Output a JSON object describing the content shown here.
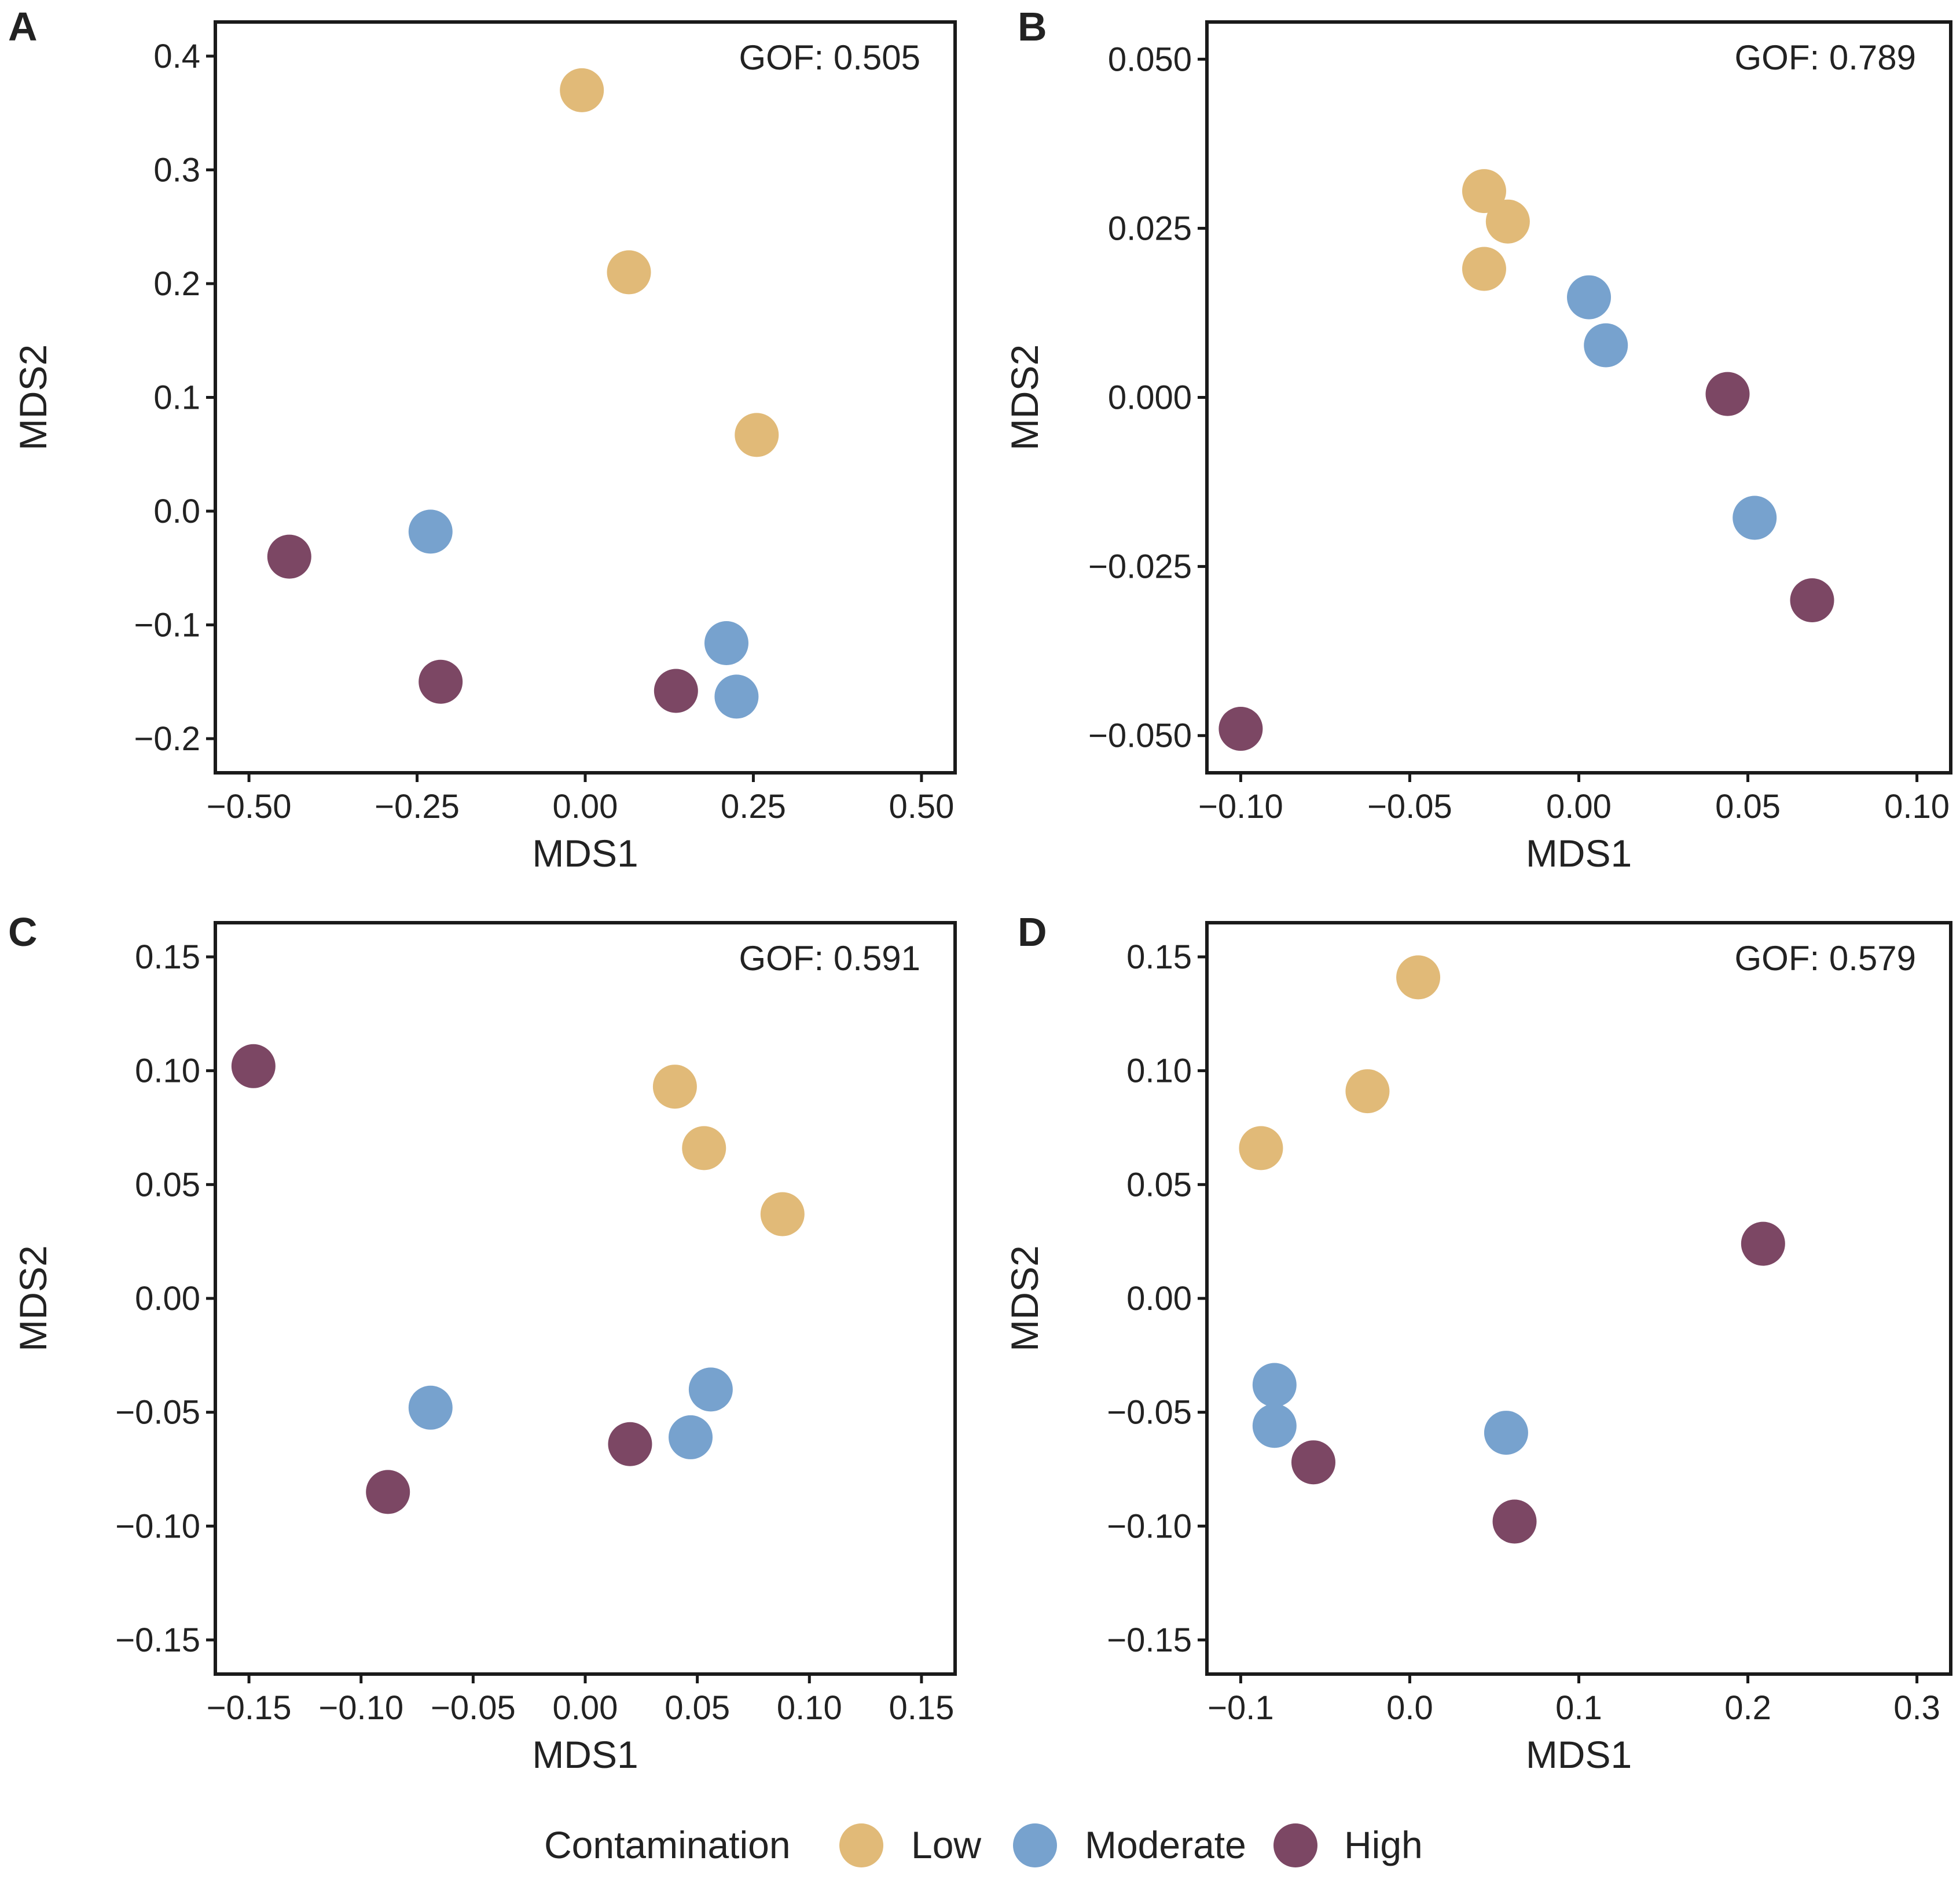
{
  "colors": {
    "Low": "#E1BA78",
    "Moderate": "#77A2CE",
    "High": "#7C4764",
    "frame": "#1a1a1a",
    "text": "#222222"
  },
  "legend": {
    "title": "Contamination",
    "items": [
      {
        "key": "Low",
        "label": "Low"
      },
      {
        "key": "Moderate",
        "label": "Moderate"
      },
      {
        "key": "High",
        "label": "High"
      }
    ]
  },
  "chart_data": [
    {
      "panel": "A",
      "type": "scatter",
      "xlabel": "MDS1",
      "ylabel": "MDS2",
      "gof": "GOF:  0.505",
      "xlim": [
        -0.55,
        0.55
      ],
      "ylim": [
        -0.23,
        0.43
      ],
      "xticks": [
        -0.5,
        -0.25,
        0.0,
        0.25,
        0.5
      ],
      "xtick_labels": [
        "−0.50",
        "−0.25",
        "0.00",
        "0.25",
        "0.50"
      ],
      "yticks": [
        -0.2,
        -0.1,
        0.0,
        0.1,
        0.2,
        0.3,
        0.4
      ],
      "ytick_labels": [
        "−0.2",
        "−0.1",
        "0.0",
        "0.1",
        "0.2",
        "0.3",
        "0.4"
      ],
      "points": [
        {
          "x": -0.005,
          "y": 0.37,
          "group": "Low"
        },
        {
          "x": 0.065,
          "y": 0.21,
          "group": "Low"
        },
        {
          "x": 0.255,
          "y": 0.067,
          "group": "Low"
        },
        {
          "x": -0.23,
          "y": -0.018,
          "group": "Moderate"
        },
        {
          "x": 0.21,
          "y": -0.116,
          "group": "Moderate"
        },
        {
          "x": 0.225,
          "y": -0.163,
          "group": "Moderate"
        },
        {
          "x": -0.44,
          "y": -0.04,
          "group": "High"
        },
        {
          "x": -0.215,
          "y": -0.15,
          "group": "High"
        },
        {
          "x": 0.135,
          "y": -0.158,
          "group": "High"
        }
      ]
    },
    {
      "panel": "B",
      "type": "scatter",
      "xlabel": "MDS1",
      "ylabel": "MDS2",
      "gof": "GOF:  0.789",
      "xlim": [
        -0.11,
        0.11
      ],
      "ylim": [
        -0.0555,
        0.0555
      ],
      "xticks": [
        -0.1,
        -0.05,
        0.0,
        0.05,
        0.1
      ],
      "xtick_labels": [
        "−0.10",
        "−0.05",
        "0.00",
        "0.05",
        "0.10"
      ],
      "yticks": [
        -0.05,
        -0.025,
        0.0,
        0.025,
        0.05
      ],
      "ytick_labels": [
        "−0.050",
        "−0.025",
        "0.000",
        "0.025",
        "0.050"
      ],
      "points": [
        {
          "x": -0.028,
          "y": 0.0305,
          "group": "Low"
        },
        {
          "x": -0.021,
          "y": 0.026,
          "group": "Low"
        },
        {
          "x": -0.028,
          "y": 0.019,
          "group": "Low"
        },
        {
          "x": 0.003,
          "y": 0.0148,
          "group": "Moderate"
        },
        {
          "x": 0.008,
          "y": 0.0077,
          "group": "Moderate"
        },
        {
          "x": 0.052,
          "y": -0.0178,
          "group": "Moderate"
        },
        {
          "x": 0.044,
          "y": 0.0005,
          "group": "High"
        },
        {
          "x": 0.069,
          "y": -0.03,
          "group": "High"
        },
        {
          "x": -0.1,
          "y": -0.049,
          "group": "High"
        }
      ]
    },
    {
      "panel": "C",
      "type": "scatter",
      "xlabel": "MDS1",
      "ylabel": "MDS2",
      "gof": "GOF:  0.591",
      "xlim": [
        -0.165,
        0.165
      ],
      "ylim": [
        -0.165,
        0.165
      ],
      "xticks": [
        -0.15,
        -0.1,
        -0.05,
        0.0,
        0.05,
        0.1,
        0.15
      ],
      "xtick_labels": [
        "−0.15",
        "−0.10",
        "−0.05",
        "0.00",
        "0.05",
        "0.10",
        "0.15"
      ],
      "yticks": [
        -0.15,
        -0.1,
        -0.05,
        0.0,
        0.05,
        0.1,
        0.15
      ],
      "ytick_labels": [
        "−0.15",
        "−0.10",
        "−0.05",
        "0.00",
        "0.05",
        "0.10",
        "0.15"
      ],
      "points": [
        {
          "x": 0.04,
          "y": 0.093,
          "group": "Low"
        },
        {
          "x": 0.053,
          "y": 0.066,
          "group": "Low"
        },
        {
          "x": 0.088,
          "y": 0.037,
          "group": "Low"
        },
        {
          "x": -0.069,
          "y": -0.048,
          "group": "Moderate"
        },
        {
          "x": 0.056,
          "y": -0.04,
          "group": "Moderate"
        },
        {
          "x": 0.047,
          "y": -0.061,
          "group": "Moderate"
        },
        {
          "x": -0.148,
          "y": 0.102,
          "group": "High"
        },
        {
          "x": 0.02,
          "y": -0.064,
          "group": "High"
        },
        {
          "x": -0.088,
          "y": -0.085,
          "group": "High"
        }
      ]
    },
    {
      "panel": "D",
      "type": "scatter",
      "xlabel": "MDS1",
      "ylabel": "MDS2",
      "gof": "GOF:  0.579",
      "xlim": [
        -0.12,
        0.32
      ],
      "ylim": [
        -0.165,
        0.165
      ],
      "xticks": [
        -0.1,
        0.0,
        0.1,
        0.2,
        0.3
      ],
      "xtick_labels": [
        "−0.1",
        "0.0",
        "0.1",
        "0.2",
        "0.3"
      ],
      "yticks": [
        -0.15,
        -0.1,
        -0.05,
        0.0,
        0.05,
        0.1,
        0.15
      ],
      "ytick_labels": [
        "−0.15",
        "−0.10",
        "−0.05",
        "0.00",
        "0.05",
        "0.10",
        "0.15"
      ],
      "points": [
        {
          "x": 0.005,
          "y": 0.141,
          "group": "Low"
        },
        {
          "x": -0.025,
          "y": 0.091,
          "group": "Low"
        },
        {
          "x": -0.088,
          "y": 0.066,
          "group": "Low"
        },
        {
          "x": -0.08,
          "y": -0.038,
          "group": "Moderate"
        },
        {
          "x": -0.08,
          "y": -0.056,
          "group": "Moderate"
        },
        {
          "x": 0.057,
          "y": -0.059,
          "group": "Moderate"
        },
        {
          "x": 0.209,
          "y": 0.024,
          "group": "High"
        },
        {
          "x": -0.057,
          "y": -0.072,
          "group": "High"
        },
        {
          "x": 0.062,
          "y": -0.098,
          "group": "High"
        }
      ]
    }
  ]
}
